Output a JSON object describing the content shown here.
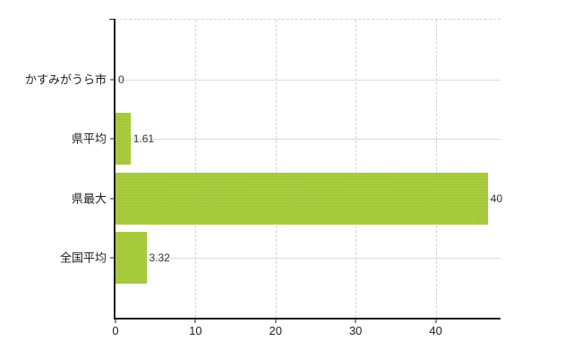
{
  "chart_data": {
    "type": "bar",
    "orientation": "horizontal",
    "title": "",
    "xlabel": "",
    "ylabel": "",
    "categories": [
      "かすみがうら市",
      "県平均",
      "県最大",
      "全国平均"
    ],
    "values": [
      0,
      1.61,
      40,
      3.32
    ],
    "value_labels": [
      "0",
      "1.61",
      "40",
      "3.32"
    ],
    "x_ticks": [
      "0",
      "10",
      "20",
      "30",
      "40"
    ],
    "x_tick_values": [
      0,
      10,
      20,
      30,
      40
    ],
    "xlim": [
      0,
      48.1
    ],
    "grid": true,
    "legend_position": "none",
    "colors": {
      "bar_base": "#a8cc3e",
      "bar_dot": "#8fb92b",
      "grid_solid": "#d6dcd2",
      "grid_dash": "#d4d0da",
      "axis": "#1c1c1c",
      "category_text": "#1e1e1e",
      "tick_text": "#222222",
      "value_text": "#333333",
      "background": "#ffffff"
    }
  }
}
